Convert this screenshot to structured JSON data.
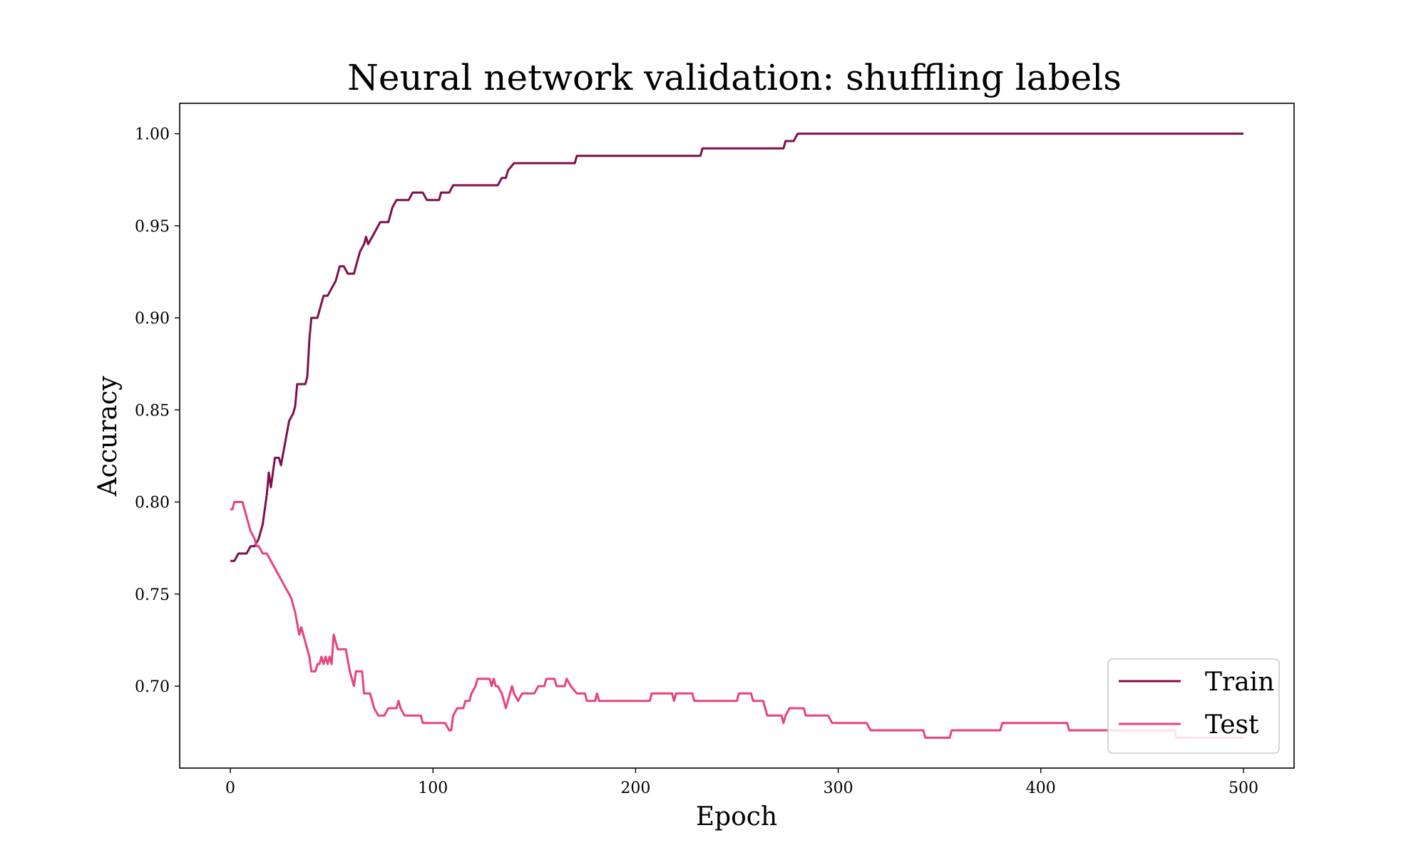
{
  "chart_data": {
    "type": "line",
    "title": "Neural network validation: shuffling labels",
    "xlabel": "Epoch",
    "ylabel": "Accuracy",
    "xlim": [
      -25,
      525
    ],
    "ylim": [
      0.6555,
      1.0165
    ],
    "xticks": [
      0,
      100,
      200,
      300,
      400,
      500
    ],
    "yticks": [
      0.7,
      0.75,
      0.8,
      0.85,
      0.9,
      0.95,
      1.0
    ],
    "xtick_labels": [
      "0",
      "100",
      "200",
      "300",
      "400",
      "500"
    ],
    "ytick_labels": [
      "0.70",
      "0.75",
      "0.80",
      "0.85",
      "0.90",
      "0.95",
      "1.00"
    ],
    "grid": false,
    "legend_position": "lower-right",
    "series": [
      {
        "name": "Train",
        "color": "#7f0f4d",
        "points": [
          [
            0,
            0.768
          ],
          [
            2,
            0.768
          ],
          [
            4,
            0.772
          ],
          [
            8,
            0.772
          ],
          [
            10,
            0.776
          ],
          [
            12,
            0.776
          ],
          [
            14,
            0.78
          ],
          [
            16,
            0.788
          ],
          [
            18,
            0.804
          ],
          [
            19,
            0.816
          ],
          [
            20,
            0.808
          ],
          [
            22,
            0.824
          ],
          [
            24,
            0.824
          ],
          [
            25,
            0.82
          ],
          [
            27,
            0.832
          ],
          [
            29,
            0.844
          ],
          [
            31,
            0.848
          ],
          [
            32,
            0.852
          ],
          [
            33,
            0.864
          ],
          [
            37,
            0.864
          ],
          [
            38,
            0.868
          ],
          [
            39,
            0.888
          ],
          [
            40,
            0.9
          ],
          [
            43,
            0.9
          ],
          [
            46,
            0.912
          ],
          [
            48,
            0.912
          ],
          [
            50,
            0.916
          ],
          [
            52,
            0.92
          ],
          [
            54,
            0.928
          ],
          [
            56,
            0.928
          ],
          [
            58,
            0.924
          ],
          [
            61,
            0.924
          ],
          [
            62,
            0.928
          ],
          [
            64,
            0.936
          ],
          [
            66,
            0.94
          ],
          [
            67,
            0.944
          ],
          [
            68,
            0.94
          ],
          [
            70,
            0.944
          ],
          [
            72,
            0.948
          ],
          [
            74,
            0.952
          ],
          [
            78,
            0.952
          ],
          [
            80,
            0.96
          ],
          [
            82,
            0.964
          ],
          [
            88,
            0.964
          ],
          [
            90,
            0.968
          ],
          [
            95,
            0.968
          ],
          [
            97,
            0.964
          ],
          [
            103,
            0.964
          ],
          [
            104,
            0.968
          ],
          [
            108,
            0.968
          ],
          [
            110,
            0.972
          ],
          [
            132,
            0.972
          ],
          [
            134,
            0.976
          ],
          [
            136,
            0.976
          ],
          [
            137,
            0.98
          ],
          [
            140,
            0.984
          ],
          [
            170,
            0.984
          ],
          [
            171,
            0.988
          ],
          [
            232,
            0.988
          ],
          [
            233,
            0.992
          ],
          [
            273,
            0.992
          ],
          [
            274,
            0.996
          ],
          [
            278,
            0.996
          ],
          [
            280,
            1.0
          ],
          [
            500,
            1.0
          ]
        ]
      },
      {
        "name": "Test",
        "color": "#e8437c",
        "points": [
          [
            0,
            0.796
          ],
          [
            1,
            0.796
          ],
          [
            2,
            0.8
          ],
          [
            6,
            0.8
          ],
          [
            8,
            0.792
          ],
          [
            10,
            0.784
          ],
          [
            12,
            0.78
          ],
          [
            13,
            0.776
          ],
          [
            14,
            0.776
          ],
          [
            16,
            0.772
          ],
          [
            18,
            0.772
          ],
          [
            20,
            0.768
          ],
          [
            22,
            0.764
          ],
          [
            24,
            0.76
          ],
          [
            26,
            0.756
          ],
          [
            28,
            0.752
          ],
          [
            30,
            0.748
          ],
          [
            32,
            0.74
          ],
          [
            34,
            0.728
          ],
          [
            35,
            0.732
          ],
          [
            37,
            0.724
          ],
          [
            39,
            0.716
          ],
          [
            40,
            0.708
          ],
          [
            42,
            0.708
          ],
          [
            43,
            0.712
          ],
          [
            44,
            0.712
          ],
          [
            45,
            0.716
          ],
          [
            46,
            0.712
          ],
          [
            47,
            0.716
          ],
          [
            48,
            0.712
          ],
          [
            49,
            0.716
          ],
          [
            50,
            0.712
          ],
          [
            51,
            0.728
          ],
          [
            53,
            0.72
          ],
          [
            57,
            0.72
          ],
          [
            59,
            0.708
          ],
          [
            61,
            0.7
          ],
          [
            62,
            0.708
          ],
          [
            65,
            0.708
          ],
          [
            66,
            0.696
          ],
          [
            69,
            0.696
          ],
          [
            71,
            0.688
          ],
          [
            73,
            0.684
          ],
          [
            76,
            0.684
          ],
          [
            78,
            0.688
          ],
          [
            82,
            0.688
          ],
          [
            83,
            0.692
          ],
          [
            84,
            0.688
          ],
          [
            86,
            0.684
          ],
          [
            94,
            0.684
          ],
          [
            95,
            0.68
          ],
          [
            106,
            0.68
          ],
          [
            108,
            0.676
          ],
          [
            109,
            0.676
          ],
          [
            110,
            0.684
          ],
          [
            112,
            0.688
          ],
          [
            115,
            0.688
          ],
          [
            116,
            0.692
          ],
          [
            118,
            0.692
          ],
          [
            119,
            0.696
          ],
          [
            121,
            0.7
          ],
          [
            122,
            0.704
          ],
          [
            128,
            0.704
          ],
          [
            129,
            0.7
          ],
          [
            130,
            0.704
          ],
          [
            131,
            0.7
          ],
          [
            132,
            0.7
          ],
          [
            134,
            0.696
          ],
          [
            135,
            0.692
          ],
          [
            136,
            0.688
          ],
          [
            138,
            0.696
          ],
          [
            139,
            0.7
          ],
          [
            140,
            0.696
          ],
          [
            142,
            0.692
          ],
          [
            144,
            0.696
          ],
          [
            150,
            0.696
          ],
          [
            152,
            0.7
          ],
          [
            155,
            0.7
          ],
          [
            156,
            0.704
          ],
          [
            160,
            0.704
          ],
          [
            161,
            0.7
          ],
          [
            165,
            0.7
          ],
          [
            166,
            0.704
          ],
          [
            168,
            0.7
          ],
          [
            171,
            0.696
          ],
          [
            175,
            0.696
          ],
          [
            176,
            0.692
          ],
          [
            180,
            0.692
          ],
          [
            181,
            0.696
          ],
          [
            182,
            0.692
          ],
          [
            207,
            0.692
          ],
          [
            208,
            0.696
          ],
          [
            218,
            0.696
          ],
          [
            219,
            0.692
          ],
          [
            220,
            0.696
          ],
          [
            228,
            0.696
          ],
          [
            229,
            0.692
          ],
          [
            250,
            0.692
          ],
          [
            251,
            0.696
          ],
          [
            257,
            0.696
          ],
          [
            258,
            0.692
          ],
          [
            263,
            0.692
          ],
          [
            265,
            0.684
          ],
          [
            272,
            0.684
          ],
          [
            273,
            0.68
          ],
          [
            274,
            0.684
          ],
          [
            276,
            0.688
          ],
          [
            283,
            0.688
          ],
          [
            284,
            0.684
          ],
          [
            295,
            0.684
          ],
          [
            297,
            0.68
          ],
          [
            314,
            0.68
          ],
          [
            316,
            0.676
          ],
          [
            342,
            0.676
          ],
          [
            343,
            0.672
          ],
          [
            355,
            0.672
          ],
          [
            356,
            0.676
          ],
          [
            380,
            0.676
          ],
          [
            381,
            0.68
          ],
          [
            413,
            0.68
          ],
          [
            414,
            0.676
          ],
          [
            466,
            0.676
          ],
          [
            467,
            0.672
          ],
          [
            500,
            0.672
          ]
        ]
      }
    ]
  }
}
